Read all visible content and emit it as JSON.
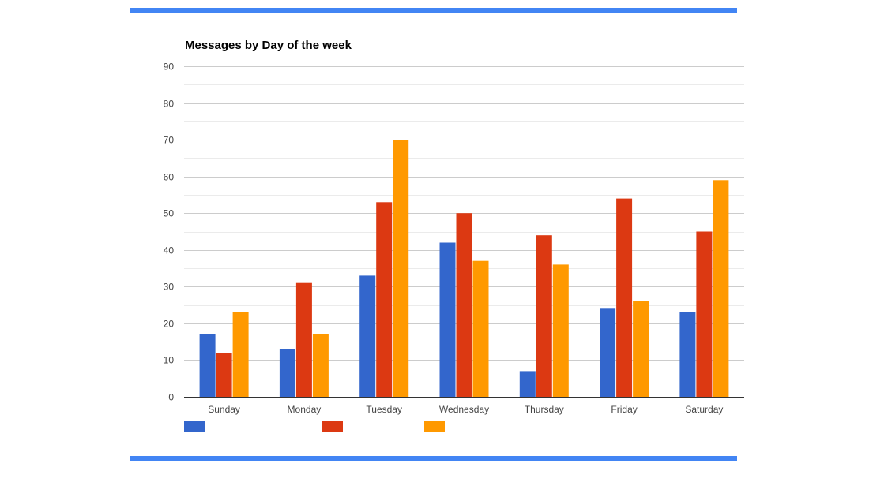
{
  "colors": {
    "accent": "#4285f4",
    "series": [
      "#3366cc",
      "#dc3912",
      "#ff9900"
    ],
    "grid": "#cccccc",
    "minor_grid": "#ebebeb",
    "axis": "#333333"
  },
  "chart_data": {
    "type": "bar",
    "title": "Messages by Day of the week",
    "xlabel": "",
    "ylabel": "",
    "categories": [
      "Sunday",
      "Monday",
      "Tuesday",
      "Wednesday",
      "Thursday",
      "Friday",
      "Saturday"
    ],
    "series": [
      {
        "values": [
          17,
          13,
          33,
          42,
          7,
          24,
          23
        ]
      },
      {
        "values": [
          12,
          31,
          53,
          50,
          44,
          54,
          45
        ]
      },
      {
        "values": [
          23,
          17,
          70,
          37,
          36,
          26,
          59
        ]
      }
    ],
    "ylim": [
      0,
      90
    ],
    "yticks": [
      0,
      10,
      20,
      30,
      40,
      50,
      60,
      70,
      80,
      90
    ],
    "grid": true,
    "legend": "bottom-left"
  }
}
